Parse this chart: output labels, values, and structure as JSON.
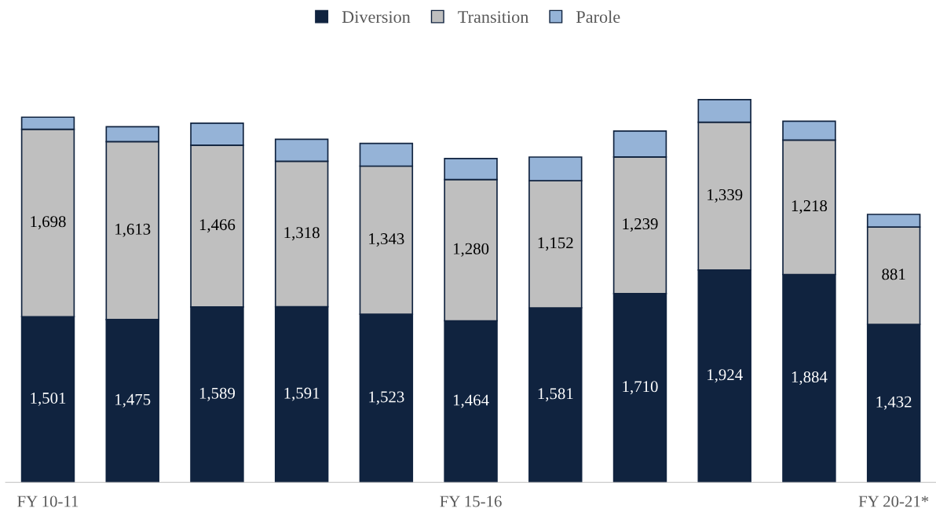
{
  "chart_data": {
    "type": "bar",
    "stacked": true,
    "legend": "top",
    "categories": [
      "FY 10-11",
      null,
      null,
      null,
      null,
      "FY 15-16",
      null,
      null,
      null,
      null,
      "FY 20-21*"
    ],
    "series": [
      {
        "name": "Diversion",
        "color": "#10233f",
        "values": [
          1501,
          1475,
          1589,
          1591,
          1523,
          1464,
          1581,
          1710,
          1924,
          1884,
          1432
        ],
        "value_labels": [
          "1,501",
          "1,475",
          "1,589",
          "1,591",
          "1,523",
          "1,464",
          "1,581",
          "1,710",
          "1,924",
          "1,884",
          "1,432"
        ]
      },
      {
        "name": "Transition",
        "color": "#bfbfbf",
        "values": [
          1698,
          1613,
          1466,
          1318,
          1343,
          1280,
          1152,
          1239,
          1339,
          1218,
          881
        ],
        "value_labels": [
          "1,698",
          "1,613",
          "1,466",
          "1,318",
          "1,343",
          "1,280",
          "1,152",
          "1,239",
          "1,339",
          "1,218",
          "881"
        ]
      },
      {
        "name": "Parole",
        "color": "#95b3d7",
        "values": [
          110,
          135,
          200,
          200,
          205,
          190,
          215,
          235,
          205,
          170,
          115
        ]
      }
    ]
  }
}
